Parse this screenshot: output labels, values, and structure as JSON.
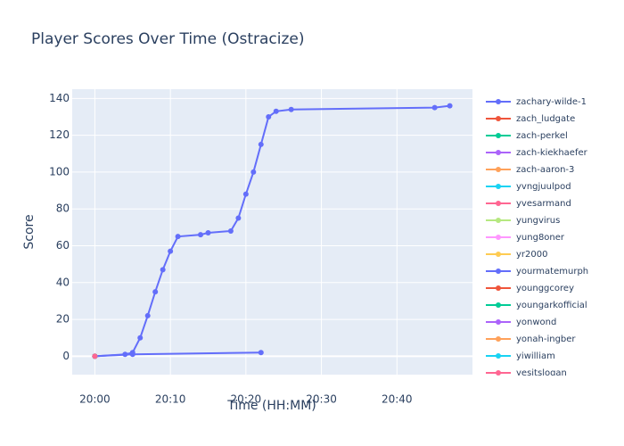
{
  "chart_data": {
    "type": "line",
    "title": "Player Scores Over Time (Ostracize)",
    "x_label": "Time (HH:MM)",
    "y_label": "Score",
    "xlim": [
      "19:57",
      "20:50"
    ],
    "xticks": [
      "20:00",
      "20:10",
      "20:20",
      "20:30",
      "20:40"
    ],
    "ylim": [
      -10,
      145
    ],
    "yticks": [
      0,
      20,
      40,
      60,
      80,
      100,
      120,
      140
    ],
    "grid": true,
    "series": [
      {
        "name": "zachary-wilde-1",
        "color": "#636efa",
        "x": [
          "20:00",
          "20:04",
          "20:05",
          "20:06",
          "20:07",
          "20:08",
          "20:09",
          "20:10",
          "20:11",
          "20:14",
          "20:15",
          "20:18",
          "20:19",
          "20:20",
          "20:21",
          "20:22",
          "20:23",
          "20:24",
          "20:26",
          "20:45",
          "20:47"
        ],
        "values": [
          0,
          1,
          2,
          10,
          22,
          35,
          47,
          57,
          65,
          66,
          67,
          68,
          75,
          88,
          100,
          115,
          130,
          133,
          134,
          135,
          136
        ]
      },
      {
        "name": "zach_ludgate",
        "color": "#EF553B",
        "x": [
          "20:00"
        ],
        "values": [
          0
        ]
      },
      {
        "name": "zach-perkel",
        "color": "#00cc96",
        "x": [
          "20:00"
        ],
        "values": [
          0
        ]
      },
      {
        "name": "zach-kiekhaefer",
        "color": "#ab63fa",
        "x": [
          "20:00"
        ],
        "values": [
          0
        ]
      },
      {
        "name": "zach-aaron-3",
        "color": "#FFA15A",
        "x": [
          "20:00"
        ],
        "values": [
          0
        ]
      },
      {
        "name": "yvngjuulpod",
        "color": "#19d3f3",
        "x": [
          "20:00"
        ],
        "values": [
          0
        ]
      },
      {
        "name": "yvesarmand",
        "color": "#FF6692",
        "x": [
          "20:00"
        ],
        "values": [
          0
        ]
      },
      {
        "name": "yungvirus",
        "color": "#B6E880",
        "x": [
          "20:00"
        ],
        "values": [
          0
        ]
      },
      {
        "name": "yung8oner",
        "color": "#FF97FF",
        "x": [
          "20:00"
        ],
        "values": [
          0
        ]
      },
      {
        "name": "yr2000",
        "color": "#FECB52",
        "x": [
          "20:00"
        ],
        "values": [
          0
        ]
      },
      {
        "name": "yourmatemurph",
        "color": "#636efa",
        "x": [
          "20:00",
          "20:05",
          "20:22"
        ],
        "values": [
          0,
          1,
          2
        ]
      },
      {
        "name": "younggcorey",
        "color": "#EF553B",
        "x": [
          "20:00"
        ],
        "values": [
          0
        ]
      },
      {
        "name": "youngarkofficial",
        "color": "#00cc96",
        "x": [
          "20:00"
        ],
        "values": [
          0
        ]
      },
      {
        "name": "yonwond",
        "color": "#ab63fa",
        "x": [
          "20:00"
        ],
        "values": [
          0
        ]
      },
      {
        "name": "yonah-ingber",
        "color": "#FFA15A",
        "x": [
          "20:00"
        ],
        "values": [
          0
        ]
      },
      {
        "name": "yiwilliam",
        "color": "#19d3f3",
        "x": [
          "20:00"
        ],
        "values": [
          0
        ]
      },
      {
        "name": "yesitslogan",
        "color": "#FF6692",
        "x": [
          "20:00"
        ],
        "values": [
          0
        ]
      }
    ]
  }
}
